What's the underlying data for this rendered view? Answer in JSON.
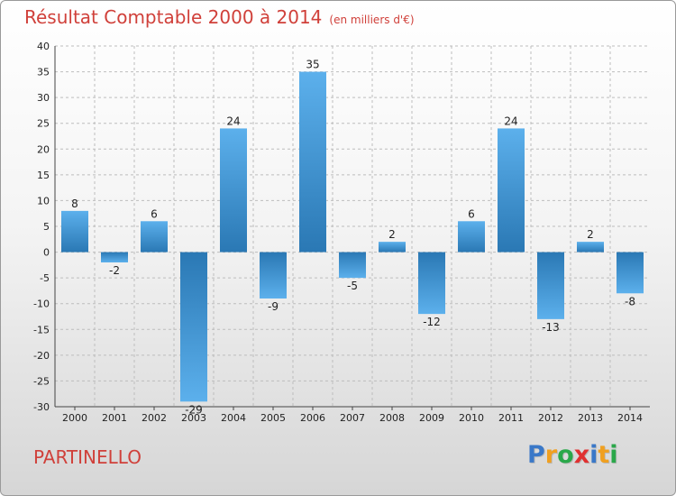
{
  "title": {
    "main": "Résultat Comptable 2000 à 2014",
    "unit": "(en milliers d'€)"
  },
  "commune": "PARTINELLO",
  "logo": {
    "letters": [
      "P",
      "r",
      "o",
      "x",
      "i",
      "t",
      "i"
    ],
    "colors": [
      "#3a78c8",
      "#f0a020",
      "#2aa84a",
      "#e03030",
      "#3a78c8",
      "#f0a020",
      "#2aa84a"
    ]
  },
  "chart_data": {
    "type": "bar",
    "title": "Résultat Comptable 2000 à 2014",
    "ylabel": "(en milliers d'€)",
    "xlabel": "",
    "categories": [
      "2000",
      "2001",
      "2002",
      "2003",
      "2004",
      "2005",
      "2006",
      "2007",
      "2008",
      "2009",
      "2010",
      "2011",
      "2012",
      "2013",
      "2014"
    ],
    "values": [
      8,
      -2,
      6,
      -29,
      24,
      -9,
      35,
      -5,
      2,
      -12,
      6,
      24,
      -13,
      2,
      -8
    ],
    "ylim": [
      -30,
      40
    ],
    "yticks": [
      40,
      35,
      30,
      25,
      20,
      15,
      10,
      5,
      0,
      -5,
      -10,
      -15,
      -20,
      -25,
      -30
    ],
    "grid": true,
    "colors": {
      "bar_light": "#5cb0ec",
      "bar_dark": "#2a78b4",
      "grid": "#bdbdbd",
      "axis": "#444444"
    }
  }
}
